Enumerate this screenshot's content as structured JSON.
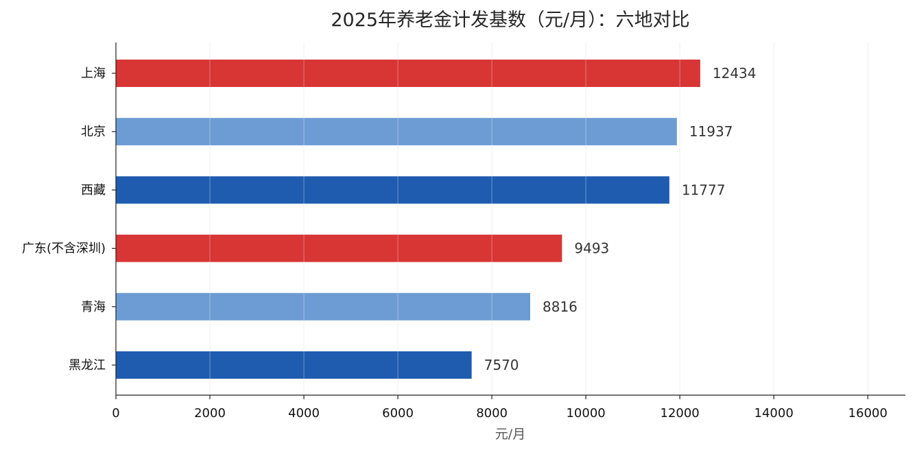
{
  "chart_data": {
    "type": "bar",
    "orientation": "horizontal",
    "title": "2025年养老金计发基数（元/月）：六地对比",
    "xlabel": "元/月",
    "ylabel": "",
    "xlim": [
      0,
      16800
    ],
    "x_ticks": [
      0,
      2000,
      4000,
      6000,
      8000,
      10000,
      12000,
      14000,
      16000
    ],
    "grid": "vertical",
    "categories": [
      "上海",
      "北京",
      "西藏",
      "广东(不含深圳)",
      "青海",
      "黑龙江"
    ],
    "values": [
      12434,
      11937,
      11777,
      9493,
      8816,
      7570
    ],
    "data_labels": [
      "12434",
      "11937",
      "11777",
      "9493",
      "8816",
      "7570"
    ],
    "bar_colors": [
      "#d83535",
      "#6d9cd4",
      "#1f5cb0",
      "#d83535",
      "#6d9cd4",
      "#1f5cb0"
    ]
  }
}
